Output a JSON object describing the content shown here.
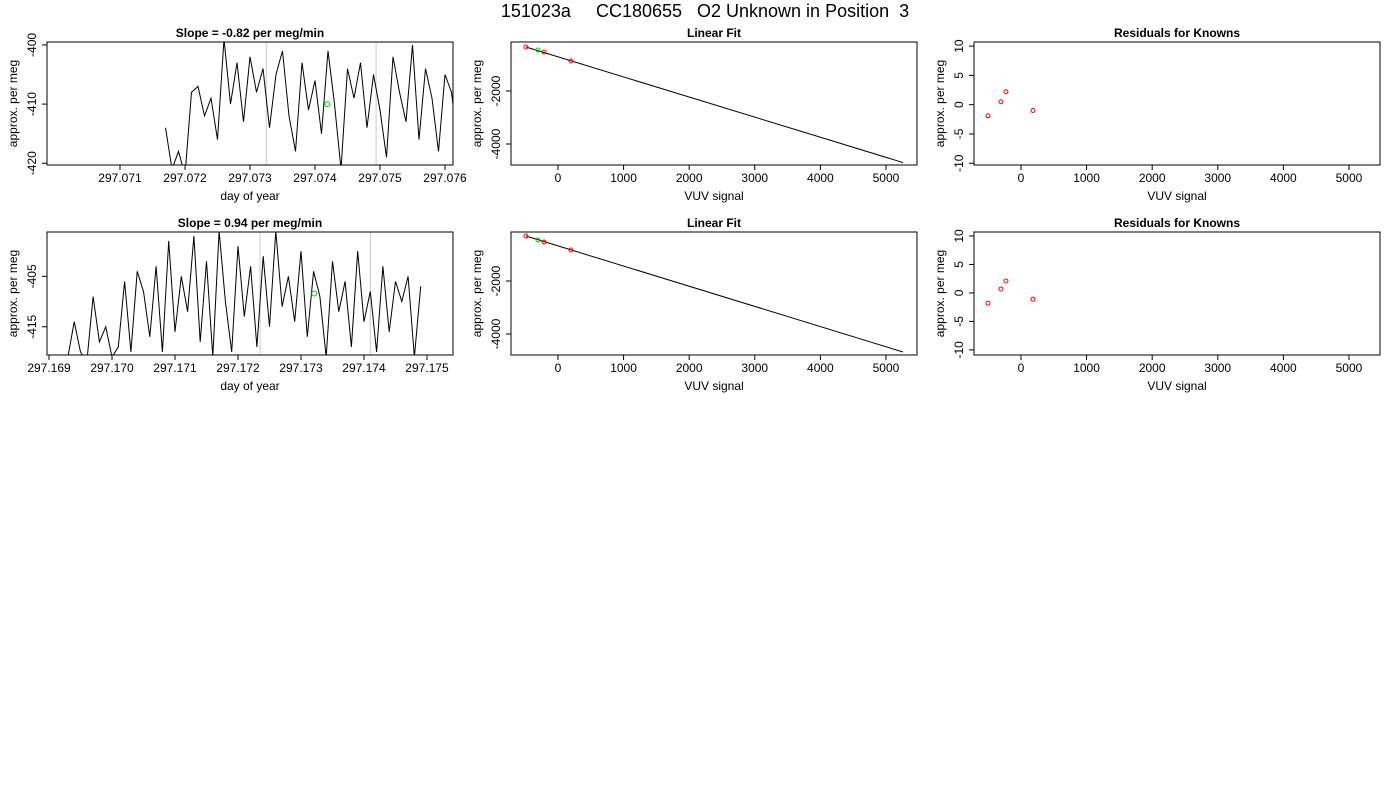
{
  "title": "151023a     CC180655   O2 Unknown in Position  3",
  "chart_data": [
    {
      "type": "line",
      "title": "Slope =  -0.82  per meg/min",
      "xlabel": "day of year",
      "ylabel": "approx. per meg",
      "xlim": [
        297.069877,
        297.076123
      ],
      "ylim": [
        -420.3,
        -399.5
      ],
      "xticks": [
        297.071,
        297.072,
        297.073,
        297.074,
        297.075,
        297.076
      ],
      "yticks": [
        -420,
        -410,
        -400
      ],
      "x": [
        297.0717,
        297.0718,
        297.0719,
        297.072,
        297.0721,
        297.0722,
        297.0723,
        297.0724,
        297.0725,
        297.0726,
        297.0727,
        297.0728,
        297.0729,
        297.073,
        297.0731,
        297.0732,
        297.0733,
        297.0734,
        297.0735,
        297.0736,
        297.0737,
        297.0738,
        297.0739,
        297.074,
        297.0741,
        297.0742,
        297.0743,
        297.0744,
        297.0745,
        297.0746,
        297.0747,
        297.0748,
        297.0749,
        297.075,
        297.0751,
        297.0752,
        297.0753,
        297.0754,
        297.0755,
        297.0756,
        297.0757,
        297.0758,
        297.0759,
        297.076,
        297.0761,
        297.0762
      ],
      "values": [
        -414,
        -421,
        -418,
        -422,
        -408,
        -407,
        -412,
        -409,
        -416,
        -399,
        -410,
        -403,
        -413,
        -402,
        -408,
        -404,
        -414,
        -405,
        -401,
        -412,
        -418,
        -403,
        -411,
        -406,
        -415,
        -401,
        -410,
        -421,
        -404,
        -409,
        -403,
        -414,
        -405,
        -411,
        -419,
        -402,
        -408,
        -413,
        -400,
        -416,
        -404,
        -409,
        -418,
        -405,
        -408,
        -417
      ],
      "color": "#000000",
      "vlines": [
        297.07325,
        297.07494
      ],
      "vline_color": "#cccccc",
      "marker": {
        "x": 297.07419,
        "y": -410,
        "color": "#00cc00"
      }
    },
    {
      "type": "scatter",
      "title": "Linear Fit",
      "xlabel": "VUV signal",
      "ylabel": "approx. per meg",
      "xlim": [
        -716,
        5473
      ],
      "ylim": [
        -4792,
        -151
      ],
      "xticks": [
        0,
        1000,
        2000,
        3000,
        4000,
        5000
      ],
      "yticks": [
        -4000,
        -2000
      ],
      "x": [
        -488,
        -305,
        -213,
        198
      ],
      "values": [
        -340,
        -453,
        -528,
        -868
      ],
      "colors": [
        "#ff0000",
        "#00cc00",
        "#ff0000",
        "#ff0000"
      ],
      "line_x": [
        -488,
        5260
      ],
      "line_values": [
        -340,
        -4700
      ],
      "line_color": "#000000"
    },
    {
      "type": "scatter",
      "title": "Residuals for Knowns",
      "xlabel": "VUV signal",
      "ylabel": "approx. per meg",
      "xlim": [
        -716,
        5473
      ],
      "ylim": [
        -10.3,
        10.7
      ],
      "xticks": [
        0,
        1000,
        2000,
        3000,
        4000,
        5000
      ],
      "yticks": [
        -10,
        -5,
        0,
        5,
        10
      ],
      "x": [
        -503,
        -305,
        -229,
        183
      ],
      "values": [
        -1.9,
        0.5,
        2.2,
        -1.0
      ],
      "colors": [
        "#ff0000",
        "#ff0000",
        "#ff0000",
        "#ff0000"
      ]
    },
    {
      "type": "line",
      "title": "Slope =  0.94  per meg/min",
      "xlabel": "day of year",
      "ylabel": "approx. per meg",
      "xlim": [
        297.168968,
        297.175413
      ],
      "ylim": [
        -420.6,
        -396.2
      ],
      "xticks": [
        297.169,
        {
          "value": 297.17,
          "label": "297.170"
        },
        297.171,
        297.172,
        297.173,
        297.174,
        297.175
      ],
      "yticks": [
        -415,
        -405
      ],
      "x": [
        297.1693,
        297.1694,
        297.1695,
        297.1696,
        297.1697,
        297.1698,
        297.1699,
        297.17,
        297.1701,
        297.1702,
        297.1703,
        297.1704,
        297.1705,
        297.1706,
        297.1707,
        297.1708,
        297.1709,
        297.171,
        297.1711,
        297.1712,
        297.1713,
        297.1714,
        297.1715,
        297.1716,
        297.1717,
        297.1718,
        297.1719,
        297.172,
        297.1721,
        297.1722,
        297.1723,
        297.1724,
        297.1725,
        297.1726,
        297.1727,
        297.1728,
        297.1729,
        297.173,
        297.1731,
        297.1732,
        297.1733,
        297.1734,
        297.1735,
        297.1736,
        297.1737,
        297.1738,
        297.1739,
        297.174,
        297.1741,
        297.1742,
        297.1743,
        297.1744,
        297.1745,
        297.1746,
        297.1747,
        297.1748,
        297.1749
      ],
      "values": [
        -421,
        -414,
        -420,
        -422,
        -409,
        -418,
        -415,
        -421,
        -419,
        -406,
        -420,
        -404,
        -408,
        -417,
        -403,
        -420,
        -398,
        -416,
        -405,
        -412,
        -397,
        -418,
        -402,
        -421,
        -396,
        -410,
        -420,
        -399,
        -413,
        -403,
        -419,
        -401,
        -415,
        -396,
        -411,
        -405,
        -414,
        -400,
        -417,
        -404,
        -409,
        -421,
        -402,
        -412,
        -406,
        -419,
        -400,
        -414,
        -408,
        -420,
        -403,
        -416,
        -406,
        -410,
        -405,
        -421,
        -407
      ],
      "color": "#000000",
      "vlines": [
        297.17235,
        297.1741
      ],
      "vline_color": "#cccccc",
      "marker": {
        "x": 297.17321,
        "y": -408.4,
        "color": "#00cc00"
      }
    },
    {
      "type": "scatter",
      "title": "Linear Fit",
      "xlabel": "VUV signal",
      "ylabel": "approx. per meg",
      "xlim": [
        -716,
        5473
      ],
      "ylim": [
        -4792,
        -151
      ],
      "xticks": [
        0,
        1000,
        2000,
        3000,
        4000,
        5000
      ],
      "yticks": [
        -4000,
        -2000
      ],
      "x": [
        -488,
        -305,
        -213,
        198
      ],
      "values": [
        -303,
        -453,
        -528,
        -830
      ],
      "colors": [
        "#ff0000",
        "#00cc00",
        "#ff0000",
        "#ff0000"
      ],
      "line_x": [
        -488,
        5260
      ],
      "line_values": [
        -303,
        -4680
      ],
      "line_color": "#000000"
    },
    {
      "type": "scatter",
      "title": "Residuals for Knowns",
      "xlabel": "VUV signal",
      "ylabel": "approx. per meg",
      "xlim": [
        -716,
        5473
      ],
      "ylim": [
        -10.9,
        10.7
      ],
      "xticks": [
        0,
        1000,
        2000,
        3000,
        4000,
        5000
      ],
      "yticks": [
        -10,
        -5,
        0,
        5,
        10
      ],
      "x": [
        -503,
        -305,
        -229,
        183
      ],
      "values": [
        -1.8,
        0.7,
        2.1,
        -1.1
      ],
      "colors": [
        "#ff0000",
        "#ff0000",
        "#ff0000",
        "#ff0000"
      ]
    }
  ]
}
